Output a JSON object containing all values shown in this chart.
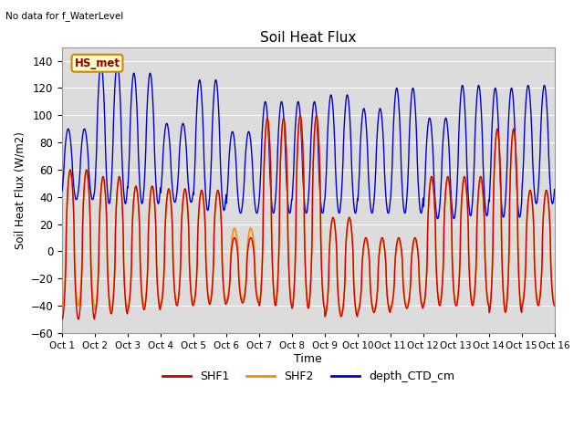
{
  "title": "Soil Heat Flux",
  "top_left_text": "No data for f_WaterLevel",
  "ylabel": "Soil Heat Flux (W/m2)",
  "xlabel": "Time",
  "ylim": [
    -60,
    150
  ],
  "yticks": [
    -60,
    -40,
    -20,
    0,
    20,
    40,
    60,
    80,
    100,
    120,
    140
  ],
  "xtick_labels": [
    "Oct 1",
    "Oct 2",
    "Oct 3",
    "Oct 4",
    "Oct 5",
    "Oct 6",
    "Oct 7",
    "Oct 8",
    "Oct 9",
    "Oct 10",
    "Oct 11",
    "Oct 12",
    "Oct 13",
    "Oct 14",
    "Oct 15",
    "Oct 16"
  ],
  "legend_labels": [
    "SHF1",
    "SHF2",
    "depth_CTD_cm"
  ],
  "legend_colors": [
    "#cc0000",
    "#ff8800",
    "#0000cc"
  ],
  "shf1_color": "#cc0000",
  "shf2_color": "#ff8800",
  "depth_color": "#0000cc",
  "inset_label": "HS_met",
  "inset_bg": "#ffffcc",
  "inset_border": "#cc8800",
  "bg_color": "#dcdcdc",
  "n_days": 15,
  "pts_per_day": 96,
  "shf1_peaks": [
    60,
    55,
    48,
    46,
    45,
    10,
    98,
    100,
    25,
    10,
    10,
    55,
    55,
    90,
    45
  ],
  "shf1_troughs": [
    -50,
    -46,
    -43,
    -40,
    -39,
    -38,
    -40,
    -42,
    -48,
    -45,
    -42,
    -40,
    -40,
    -45,
    -40
  ],
  "shf2_peaks": [
    58,
    53,
    47,
    44,
    43,
    17,
    96,
    98,
    23,
    8,
    8,
    53,
    52,
    88,
    43
  ],
  "shf2_troughs": [
    -40,
    -43,
    -40,
    -38,
    -37,
    -36,
    -38,
    -40,
    -46,
    -43,
    -40,
    -38,
    -38,
    -43,
    -38
  ],
  "depth_peaks": [
    90,
    138,
    131,
    94,
    126,
    88,
    110,
    110,
    115,
    105,
    120,
    98,
    122,
    120,
    122
  ],
  "depth_troughs": [
    38,
    35,
    35,
    36,
    30,
    28,
    28,
    28,
    28,
    28,
    28,
    24,
    26,
    25,
    35
  ]
}
